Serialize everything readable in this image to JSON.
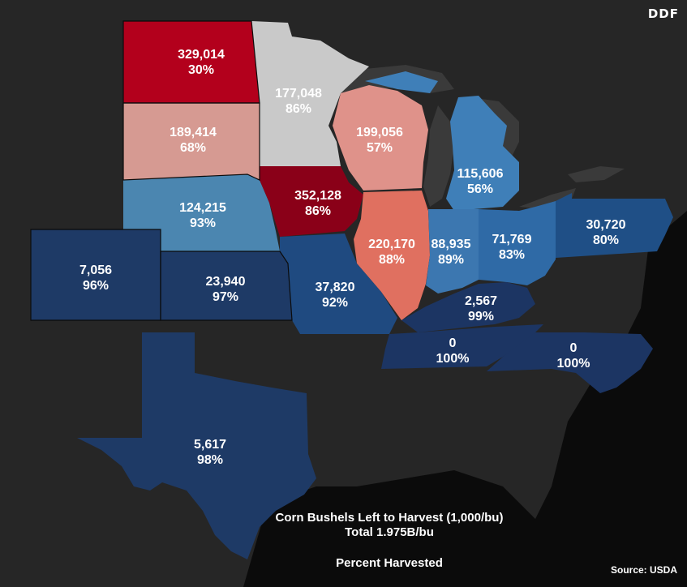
{
  "logo": "DDF",
  "title": "Corn Bushels Left to Harvest (1,000/bu)",
  "total": "Total 1.975B/bu",
  "subtitle": "Percent Harvested",
  "source": "Source: USDA",
  "colors": {
    "background": "#0b0b0b",
    "land": "#2b2b2b",
    "water": "#3a3a3a",
    "deep_red": "#8a0018",
    "red": "#b3001c",
    "pink": "#d69a92",
    "salmon": "#e07060",
    "gray": "#c9c9c9",
    "light_blue": "#3f7fb8",
    "steel_blue": "#4b86b0",
    "mid_blue": "#1f4f86",
    "navy": "#1e3a66",
    "dark_navy": "#1c3563"
  },
  "states": [
    {
      "name": "North Dakota",
      "bushels": "329,014",
      "pct": "30%",
      "color": "#b3001c"
    },
    {
      "name": "Minnesota",
      "bushels": "177,048",
      "pct": "86%",
      "color": "#c9c9c9"
    },
    {
      "name": "South Dakota",
      "bushels": "189,414",
      "pct": "68%",
      "color": "#d69a92"
    },
    {
      "name": "Wisconsin",
      "bushels": "199,056",
      "pct": "57%",
      "color": "#df928a"
    },
    {
      "name": "Michigan",
      "bushels": "115,606",
      "pct": "56%",
      "color": "#3f7fb8"
    },
    {
      "name": "Nebraska",
      "bushels": "124,215",
      "pct": "93%",
      "color": "#4b86b0"
    },
    {
      "name": "Iowa",
      "bushels": "352,128",
      "pct": "86%",
      "color": "#8a0018"
    },
    {
      "name": "Illinois",
      "bushels": "220,170",
      "pct": "88%",
      "color": "#e07060"
    },
    {
      "name": "Indiana",
      "bushels": "88,935",
      "pct": "89%",
      "color": "#3c77b0"
    },
    {
      "name": "Ohio",
      "bushels": "71,769",
      "pct": "83%",
      "color": "#2f6aa6"
    },
    {
      "name": "Pennsylvania",
      "bushels": "30,720",
      "pct": "80%",
      "color": "#1f4f86"
    },
    {
      "name": "Colorado",
      "bushels": "7,056",
      "pct": "96%",
      "color": "#1e3a66"
    },
    {
      "name": "Kansas",
      "bushels": "23,940",
      "pct": "97%",
      "color": "#1e3a66"
    },
    {
      "name": "Missouri",
      "bushels": "37,820",
      "pct": "92%",
      "color": "#1f4a80"
    },
    {
      "name": "Kentucky",
      "bushels": "2,567",
      "pct": "99%",
      "color": "#1c3563"
    },
    {
      "name": "Tennessee",
      "bushels": "0",
      "pct": "100%",
      "color": "#1c3563"
    },
    {
      "name": "North Carolina",
      "bushels": "0",
      "pct": "100%",
      "color": "#1c3563"
    },
    {
      "name": "Texas",
      "bushels": "5,617",
      "pct": "98%",
      "color": "#1e3a66"
    }
  ]
}
